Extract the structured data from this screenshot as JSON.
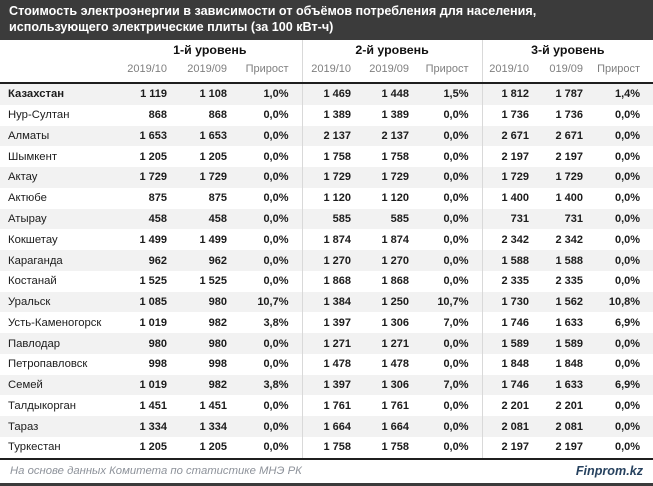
{
  "header": {
    "title_line1": "Стоимость электроэнергии в зависимости от объёмов потребления для населения,",
    "title_line2": "использующего электрические плиты (за 100 кВт-ч)"
  },
  "chart_data": {
    "type": "table",
    "title": "Стоимость электроэнергии в зависимости от объёмов потребления для населения, использующего электрические плиты (за 100 кВт-ч)",
    "groups": [
      "1-й уровень",
      "2-й уровень",
      "3-й уровень"
    ],
    "subcolumns": [
      [
        "2019/10",
        "2019/09",
        "Прирост"
      ],
      [
        "2019/10",
        "2019/09",
        "Прирост"
      ],
      [
        "2019/10",
        "019/09",
        "Прирост"
      ]
    ],
    "rows": [
      {
        "name": "Казахстан",
        "emphasis": true,
        "values": [
          [
            "1 119",
            "1 108",
            "1,0%"
          ],
          [
            "1 469",
            "1 448",
            "1,5%"
          ],
          [
            "1 812",
            "1 787",
            "1,4%"
          ]
        ]
      },
      {
        "name": "Нур-Султан",
        "values": [
          [
            "868",
            "868",
            "0,0%"
          ],
          [
            "1 389",
            "1 389",
            "0,0%"
          ],
          [
            "1 736",
            "1 736",
            "0,0%"
          ]
        ]
      },
      {
        "name": "Алматы",
        "values": [
          [
            "1 653",
            "1 653",
            "0,0%"
          ],
          [
            "2 137",
            "2 137",
            "0,0%"
          ],
          [
            "2 671",
            "2 671",
            "0,0%"
          ]
        ]
      },
      {
        "name": "Шымкент",
        "values": [
          [
            "1 205",
            "1 205",
            "0,0%"
          ],
          [
            "1 758",
            "1 758",
            "0,0%"
          ],
          [
            "2 197",
            "2 197",
            "0,0%"
          ]
        ]
      },
      {
        "name": "Актау",
        "values": [
          [
            "1 729",
            "1 729",
            "0,0%"
          ],
          [
            "1 729",
            "1 729",
            "0,0%"
          ],
          [
            "1 729",
            "1 729",
            "0,0%"
          ]
        ]
      },
      {
        "name": "Актюбе",
        "values": [
          [
            "875",
            "875",
            "0,0%"
          ],
          [
            "1 120",
            "1 120",
            "0,0%"
          ],
          [
            "1 400",
            "1 400",
            "0,0%"
          ]
        ]
      },
      {
        "name": "Атырау",
        "values": [
          [
            "458",
            "458",
            "0,0%"
          ],
          [
            "585",
            "585",
            "0,0%"
          ],
          [
            "731",
            "731",
            "0,0%"
          ]
        ]
      },
      {
        "name": "Кокшетау",
        "values": [
          [
            "1 499",
            "1 499",
            "0,0%"
          ],
          [
            "1 874",
            "1 874",
            "0,0%"
          ],
          [
            "2 342",
            "2 342",
            "0,0%"
          ]
        ]
      },
      {
        "name": "Караганда",
        "values": [
          [
            "962",
            "962",
            "0,0%"
          ],
          [
            "1 270",
            "1 270",
            "0,0%"
          ],
          [
            "1 588",
            "1 588",
            "0,0%"
          ]
        ]
      },
      {
        "name": "Костанай",
        "values": [
          [
            "1 525",
            "1 525",
            "0,0%"
          ],
          [
            "1 868",
            "1 868",
            "0,0%"
          ],
          [
            "2 335",
            "2 335",
            "0,0%"
          ]
        ]
      },
      {
        "name": "Уральск",
        "values": [
          [
            "1 085",
            "980",
            "10,7%"
          ],
          [
            "1 384",
            "1 250",
            "10,7%"
          ],
          [
            "1 730",
            "1 562",
            "10,8%"
          ]
        ]
      },
      {
        "name": "Усть-Каменогорск",
        "values": [
          [
            "1 019",
            "982",
            "3,8%"
          ],
          [
            "1 397",
            "1 306",
            "7,0%"
          ],
          [
            "1 746",
            "1 633",
            "6,9%"
          ]
        ]
      },
      {
        "name": "Павлодар",
        "values": [
          [
            "980",
            "980",
            "0,0%"
          ],
          [
            "1 271",
            "1 271",
            "0,0%"
          ],
          [
            "1 589",
            "1 589",
            "0,0%"
          ]
        ]
      },
      {
        "name": "Петропавловск",
        "values": [
          [
            "998",
            "998",
            "0,0%"
          ],
          [
            "1 478",
            "1 478",
            "0,0%"
          ],
          [
            "1 848",
            "1 848",
            "0,0%"
          ]
        ]
      },
      {
        "name": "Семей",
        "values": [
          [
            "1 019",
            "982",
            "3,8%"
          ],
          [
            "1 397",
            "1 306",
            "7,0%"
          ],
          [
            "1 746",
            "1 633",
            "6,9%"
          ]
        ]
      },
      {
        "name": "Талдыкорган",
        "values": [
          [
            "1 451",
            "1 451",
            "0,0%"
          ],
          [
            "1 761",
            "1 761",
            "0,0%"
          ],
          [
            "2 201",
            "2 201",
            "0,0%"
          ]
        ]
      },
      {
        "name": "Тараз",
        "values": [
          [
            "1 334",
            "1 334",
            "0,0%"
          ],
          [
            "1 664",
            "1 664",
            "0,0%"
          ],
          [
            "2 081",
            "2 081",
            "0,0%"
          ]
        ]
      },
      {
        "name": "Туркестан",
        "values": [
          [
            "1 205",
            "1 205",
            "0,0%"
          ],
          [
            "1 758",
            "1 758",
            "0,0%"
          ],
          [
            "2 197",
            "2 197",
            "0,0%"
          ]
        ]
      }
    ]
  },
  "footer": {
    "source": "На основе данных Комитета по статистике МНЭ РК",
    "brand": "Finprom.kz"
  },
  "colors": {
    "title_bar_bg": "#3b3b3b",
    "stripe": "#f2f2f2",
    "group_separator": "#d9d9d9",
    "subheader_text": "#7f7f7f",
    "heavy_border": "#1f1f1f",
    "brand_text": "#27425f",
    "source_text": "#8d929a"
  }
}
